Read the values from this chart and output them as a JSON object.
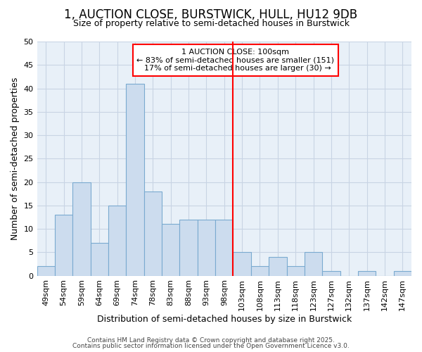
{
  "title_line1": "1, AUCTION CLOSE, BURSTWICK, HULL, HU12 9DB",
  "title_line2": "Size of property relative to semi-detached houses in Burstwick",
  "xlabel": "Distribution of semi-detached houses by size in Burstwick",
  "ylabel": "Number of semi-detached properties",
  "categories": [
    "49sqm",
    "54sqm",
    "59sqm",
    "64sqm",
    "69sqm",
    "74sqm",
    "78sqm",
    "83sqm",
    "88sqm",
    "93sqm",
    "98sqm",
    "103sqm",
    "108sqm",
    "113sqm",
    "118sqm",
    "123sqm",
    "127sqm",
    "132sqm",
    "137sqm",
    "142sqm",
    "147sqm"
  ],
  "values": [
    2,
    13,
    20,
    7,
    15,
    41,
    18,
    11,
    12,
    12,
    12,
    5,
    2,
    4,
    2,
    5,
    1,
    0,
    1,
    0,
    1
  ],
  "bar_color": "#ccdcee",
  "bar_edge_color": "#7aaad0",
  "property_line_x": 10.5,
  "ylim": [
    0,
    50
  ],
  "yticks": [
    0,
    5,
    10,
    15,
    20,
    25,
    30,
    35,
    40,
    45,
    50
  ],
  "annotation_title": "1 AUCTION CLOSE: 100sqm",
  "annotation_smaller": "← 83% of semi-detached houses are smaller (151)",
  "annotation_larger": "17% of semi-detached houses are larger (30) →",
  "background_color": "#ffffff",
  "plot_bg_color": "#e8f0f8",
  "footer_line1": "Contains HM Land Registry data © Crown copyright and database right 2025.",
  "footer_line2": "Contains public sector information licensed under the Open Government Licence v3.0.",
  "grid_color": "#c8d4e4",
  "title_fontsize": 12,
  "subtitle_fontsize": 9,
  "axis_label_fontsize": 9,
  "tick_fontsize": 8,
  "annotation_fontsize": 8
}
